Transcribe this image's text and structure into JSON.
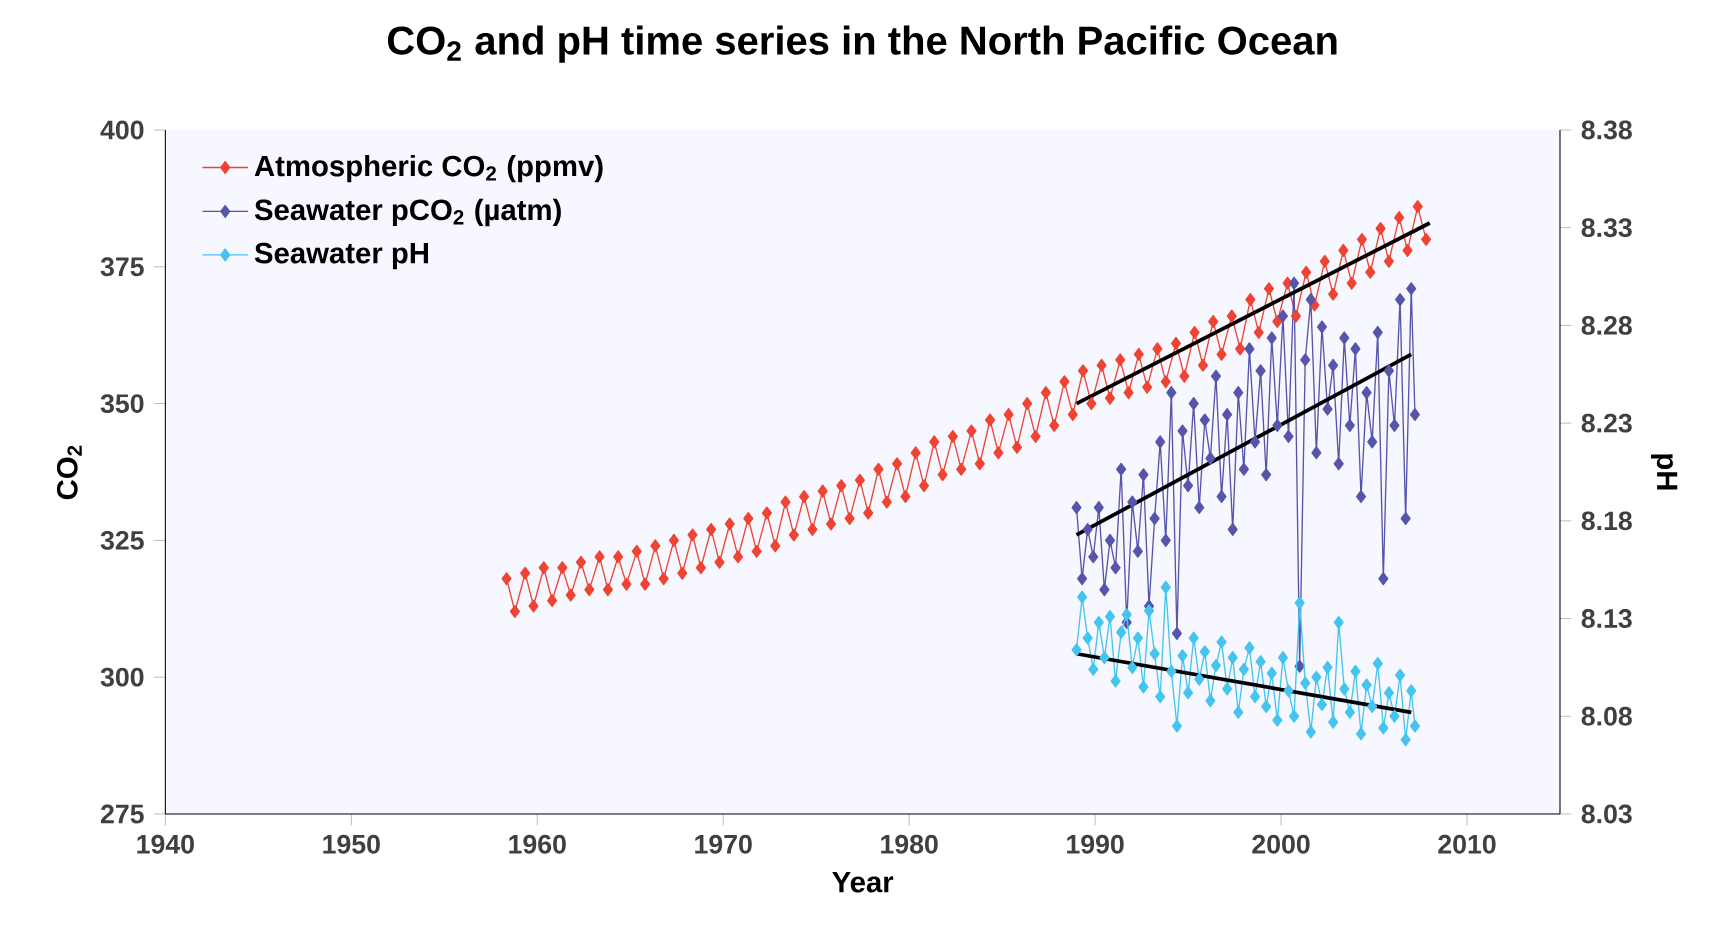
{
  "chart_data": {
    "type": "line",
    "title": "CO$_{2}$ and pH time series in the North Pacific Ocean",
    "xlabel": "Year",
    "ylabel": "CO$_{2}$",
    "y2label": "pH",
    "xlim": [
      1940,
      2015
    ],
    "xticks": [
      1940,
      1950,
      1960,
      1970,
      1980,
      1990,
      2000,
      2010
    ],
    "ylim": [
      275,
      400
    ],
    "yticks": [
      275,
      300,
      325,
      350,
      375,
      400
    ],
    "y2lim": [
      8.03,
      8.38
    ],
    "y2ticks": [
      8.03,
      8.08,
      8.13,
      8.18,
      8.23,
      8.28,
      8.33,
      8.38
    ],
    "legend": "top left",
    "marker": "diamond",
    "grid": false,
    "series": [
      {
        "name": "Atmospheric CO$_{2}$ (ppmv)",
        "color": "#ee4433",
        "x": [
          1958.35,
          1958.8,
          1959.35,
          1959.8,
          1960.35,
          1960.8,
          1961.35,
          1961.8,
          1962.35,
          1962.8,
          1963.35,
          1963.8,
          1964.35,
          1964.8,
          1965.35,
          1965.8,
          1966.35,
          1966.8,
          1967.35,
          1967.8,
          1968.35,
          1968.8,
          1969.35,
          1969.8,
          1970.35,
          1970.8,
          1971.35,
          1971.8,
          1972.35,
          1972.8,
          1973.35,
          1973.8,
          1974.35,
          1974.8,
          1975.35,
          1975.8,
          1976.35,
          1976.8,
          1977.35,
          1977.8,
          1978.35,
          1978.8,
          1979.35,
          1979.8,
          1980.35,
          1980.8,
          1981.35,
          1981.8,
          1982.35,
          1982.8,
          1983.35,
          1983.8,
          1984.35,
          1984.8,
          1985.35,
          1985.8,
          1986.35,
          1986.8,
          1987.35,
          1987.8,
          1988.35,
          1988.8,
          1989.35,
          1989.8,
          1990.35,
          1990.8,
          1991.35,
          1991.8,
          1992.35,
          1992.8,
          1993.35,
          1993.8,
          1994.35,
          1994.8,
          1995.35,
          1995.8,
          1996.35,
          1996.8,
          1997.35,
          1997.8,
          1998.35,
          1998.8,
          1999.35,
          1999.8,
          2000.35,
          2000.8,
          2001.35,
          2001.8,
          2002.35,
          2002.8,
          2003.35,
          2003.8,
          2004.35,
          2004.8,
          2005.35,
          2005.8,
          2006.35,
          2006.8,
          2007.35,
          2007.8
        ],
        "values": [
          318,
          312,
          319,
          313,
          320,
          314,
          320,
          315,
          321,
          316,
          322,
          316,
          322,
          317,
          323,
          317,
          324,
          318,
          325,
          319,
          326,
          320,
          327,
          321,
          328,
          322,
          329,
          323,
          330,
          324,
          332,
          326,
          333,
          327,
          334,
          328,
          335,
          329,
          336,
          330,
          338,
          332,
          339,
          333,
          341,
          335,
          343,
          337,
          344,
          338,
          345,
          339,
          347,
          341,
          348,
          342,
          350,
          344,
          352,
          346,
          354,
          348,
          356,
          350,
          357,
          351,
          358,
          352,
          359,
          353,
          360,
          354,
          361,
          355,
          363,
          357,
          365,
          359,
          366,
          360,
          369,
          363,
          371,
          365,
          372,
          366,
          374,
          368,
          376,
          370,
          378,
          372,
          380,
          374,
          382,
          376,
          384,
          378,
          386,
          380
        ]
      },
      {
        "name": "Seawater pCO$_{2}$ (µatm)",
        "color": "#5555aa",
        "x": [
          1989.0,
          1989.3,
          1989.6,
          1989.9,
          1990.2,
          1990.5,
          1990.8,
          1991.1,
          1991.4,
          1991.7,
          1992.0,
          1992.3,
          1992.6,
          1992.9,
          1993.2,
          1993.5,
          1993.8,
          1994.1,
          1994.4,
          1994.7,
          1995.0,
          1995.3,
          1995.6,
          1995.9,
          1996.2,
          1996.5,
          1996.8,
          1997.1,
          1997.4,
          1997.7,
          1998.0,
          1998.3,
          1998.6,
          1998.9,
          1999.2,
          1999.5,
          1999.8,
          2000.1,
          2000.4,
          2000.7,
          2001.0,
          2001.3,
          2001.6,
          2001.9,
          2002.2,
          2002.5,
          2002.8,
          2003.1,
          2003.4,
          2003.7,
          2004.0,
          2004.3,
          2004.6,
          2004.9,
          2005.2,
          2005.5,
          2005.8,
          2006.1,
          2006.4,
          2006.7,
          2007.0,
          2007.2
        ],
        "values": [
          331,
          318,
          327,
          322,
          331,
          316,
          325,
          320,
          338,
          310,
          332,
          323,
          337,
          313,
          329,
          343,
          325,
          352,
          308,
          345,
          335,
          350,
          331,
          347,
          340,
          355,
          333,
          348,
          327,
          352,
          338,
          360,
          343,
          356,
          337,
          362,
          346,
          366,
          344,
          372,
          302,
          358,
          369,
          341,
          364,
          349,
          357,
          339,
          362,
          346,
          360,
          333,
          352,
          343,
          363,
          318,
          356,
          346,
          369,
          329,
          371,
          348
        ]
      },
      {
        "name": "Seawater pH",
        "color": "#44c4ee",
        "axis": "y2",
        "x": [
          1989.0,
          1989.3,
          1989.6,
          1989.9,
          1990.2,
          1990.5,
          1990.8,
          1991.1,
          1991.4,
          1991.7,
          1992.0,
          1992.3,
          1992.6,
          1992.9,
          1993.2,
          1993.5,
          1993.8,
          1994.1,
          1994.4,
          1994.7,
          1995.0,
          1995.3,
          1995.6,
          1995.9,
          1996.2,
          1996.5,
          1996.8,
          1997.1,
          1997.4,
          1997.7,
          1998.0,
          1998.3,
          1998.6,
          1998.9,
          1999.2,
          1999.5,
          1999.8,
          2000.1,
          2000.4,
          2000.7,
          2001.0,
          2001.3,
          2001.6,
          2001.9,
          2002.2,
          2002.5,
          2002.8,
          2003.1,
          2003.4,
          2003.7,
          2004.0,
          2004.3,
          2004.6,
          2004.9,
          2005.2,
          2005.5,
          2005.8,
          2006.1,
          2006.4,
          2006.7,
          2007.0,
          2007.2
        ],
        "values": [
          8.114,
          8.141,
          8.12,
          8.104,
          8.128,
          8.11,
          8.131,
          8.098,
          8.123,
          8.132,
          8.105,
          8.12,
          8.095,
          8.134,
          8.112,
          8.09,
          8.146,
          8.103,
          8.075,
          8.111,
          8.092,
          8.12,
          8.099,
          8.113,
          8.088,
          8.106,
          8.118,
          8.094,
          8.11,
          8.082,
          8.104,
          8.115,
          8.09,
          8.108,
          8.085,
          8.102,
          8.078,
          8.11,
          8.093,
          8.08,
          8.138,
          8.097,
          8.072,
          8.1,
          8.086,
          8.105,
          8.077,
          8.128,
          8.094,
          8.082,
          8.103,
          8.071,
          8.096,
          8.085,
          8.107,
          8.074,
          8.092,
          8.08,
          8.101,
          8.068,
          8.093,
          8.075
        ]
      },
      {
        "color": "#000000",
        "marker": "none",
        "x": [
          1989,
          2008
        ],
        "values": [
          350,
          383
        ]
      },
      {
        "color": "#000000",
        "marker": "none",
        "x": [
          1989,
          2007
        ],
        "values": [
          326,
          359
        ]
      },
      {
        "color": "#000000",
        "marker": "none",
        "axis": "y2",
        "x": [
          1989,
          2007
        ],
        "values": [
          8.112,
          8.082
        ]
      }
    ]
  }
}
